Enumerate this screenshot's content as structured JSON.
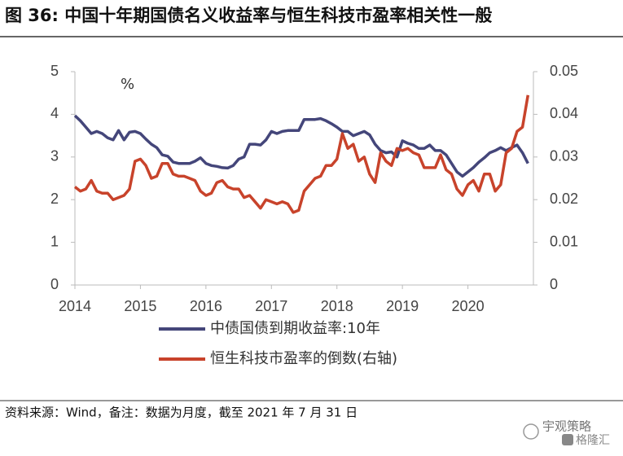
{
  "chart_data": {
    "type": "line",
    "title": "图 36: 中国十年期国债名义收益率与恒生科技市盈率相关性一般",
    "annotation": "%",
    "source": "资料来源：Wind，备注：数据为月度，截至 2021 年 7 月 31 日",
    "watermark": "宇观策略",
    "logo": "格隆汇",
    "x": [
      2014,
      2014.083,
      2014.167,
      2014.25,
      2014.333,
      2014.417,
      2014.5,
      2014.583,
      2014.667,
      2014.75,
      2014.833,
      2014.917,
      2015,
      2015.083,
      2015.167,
      2015.25,
      2015.333,
      2015.417,
      2015.5,
      2015.583,
      2015.667,
      2015.75,
      2015.833,
      2015.917,
      2016,
      2016.083,
      2016.167,
      2016.25,
      2016.333,
      2016.417,
      2016.5,
      2016.583,
      2016.667,
      2016.75,
      2016.833,
      2016.917,
      2017,
      2017.083,
      2017.167,
      2017.25,
      2017.333,
      2017.417,
      2017.5,
      2017.583,
      2017.667,
      2017.75,
      2017.833,
      2017.917,
      2018,
      2018.083,
      2018.167,
      2018.25,
      2018.333,
      2018.417,
      2018.5,
      2018.583,
      2018.667,
      2018.75,
      2018.833,
      2018.917,
      2019,
      2019.083,
      2019.167,
      2019.25,
      2019.333,
      2019.417,
      2019.5,
      2019.583,
      2019.667,
      2019.75,
      2019.833,
      2019.917,
      2020,
      2020.083,
      2020.167,
      2020.25,
      2020.333,
      2020.417,
      2020.5,
      2020.583,
      2020.667,
      2020.75,
      2020.833,
      2020.917
    ],
    "series": [
      {
        "name": "中债国债到期收益率:10年",
        "color": "#44467a",
        "axis": "y",
        "values": [
          3.97,
          3.85,
          3.7,
          3.55,
          3.6,
          3.55,
          3.45,
          3.4,
          3.62,
          3.4,
          3.58,
          3.6,
          3.55,
          3.42,
          3.3,
          3.22,
          3.05,
          3.02,
          2.88,
          2.85,
          2.85,
          2.85,
          2.9,
          2.98,
          2.85,
          2.8,
          2.78,
          2.75,
          2.74,
          2.8,
          2.95,
          3.0,
          3.3,
          3.3,
          3.28,
          3.4,
          3.6,
          3.55,
          3.6,
          3.62,
          3.62,
          3.62,
          3.88,
          3.88,
          3.88,
          3.9,
          3.85,
          3.78,
          3.7,
          3.6,
          3.6,
          3.5,
          3.55,
          3.6,
          3.52,
          3.3,
          3.15,
          3.1,
          3.12,
          3.0,
          3.38,
          3.32,
          3.28,
          3.2,
          3.2,
          3.28,
          3.15,
          3.15,
          3.05,
          2.85,
          2.65,
          2.55,
          2.65,
          2.75,
          2.88,
          2.98,
          3.1,
          3.15,
          3.22,
          3.15,
          3.22,
          3.28,
          3.1,
          2.85
        ]
      },
      {
        "name": "恒生科技市盈率的倒数(右轴)",
        "color": "#c8432b",
        "axis": "y2",
        "values": [
          0.023,
          0.022,
          0.0225,
          0.0245,
          0.022,
          0.0215,
          0.0215,
          0.02,
          0.0205,
          0.021,
          0.0225,
          0.029,
          0.0295,
          0.028,
          0.025,
          0.0255,
          0.0285,
          0.0285,
          0.026,
          0.0255,
          0.0255,
          0.025,
          0.0245,
          0.022,
          0.021,
          0.0215,
          0.024,
          0.0245,
          0.023,
          0.0225,
          0.0225,
          0.0205,
          0.021,
          0.0195,
          0.018,
          0.02,
          0.0195,
          0.019,
          0.0195,
          0.019,
          0.017,
          0.0175,
          0.022,
          0.0235,
          0.025,
          0.0255,
          0.028,
          0.028,
          0.0295,
          0.0355,
          0.032,
          0.033,
          0.029,
          0.03,
          0.026,
          0.024,
          0.031,
          0.029,
          0.028,
          0.032,
          0.0315,
          0.032,
          0.031,
          0.0305,
          0.0275,
          0.0275,
          0.0275,
          0.0305,
          0.027,
          0.026,
          0.0225,
          0.021,
          0.0235,
          0.0245,
          0.022,
          0.026,
          0.026,
          0.022,
          0.0235,
          0.031,
          0.032,
          0.036,
          0.037,
          0.0445
        ]
      }
    ],
    "xlim": [
      2014,
      2021
    ],
    "xticks": [
      2014,
      2015,
      2016,
      2017,
      2018,
      2019,
      2020
    ],
    "ylim": [
      0,
      5
    ],
    "yticks": [
      0,
      1,
      2,
      3,
      4,
      5
    ],
    "y2lim": [
      0,
      0.05
    ],
    "y2ticks": [
      0,
      0.01,
      0.02,
      0.03,
      0.04,
      0.05
    ],
    "grid": false
  }
}
